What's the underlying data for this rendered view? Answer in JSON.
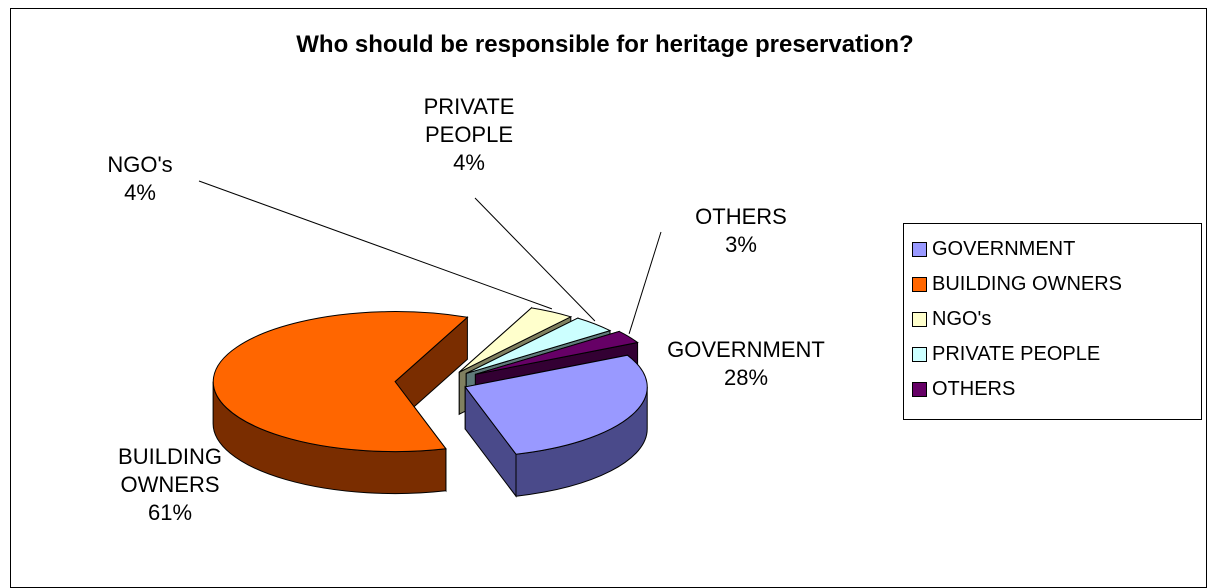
{
  "chart_data": {
    "type": "pie",
    "title": "Who should be responsible for heritage preservation?",
    "three_d": true,
    "exploded": true,
    "legend_position": "right",
    "slices": [
      {
        "name": "GOVERNMENT",
        "label": "GOVERNMENT",
        "value": 28,
        "pct_text": "28%",
        "color": "#9999ff",
        "side_color": "#4a4a8a"
      },
      {
        "name": "BUILDING OWNERS",
        "label": "BUILDING OWNERS",
        "value": 61,
        "pct_text": "61%",
        "color": "#ff6600",
        "side_color": "#7a2d00"
      },
      {
        "name": "NGO's",
        "label": "NGO's",
        "value": 4,
        "pct_text": "4%",
        "color": "#ffffcc",
        "side_color": "#808060"
      },
      {
        "name": "PRIVATE PEOPLE",
        "label": "PRIVATE PEOPLE",
        "value": 4,
        "pct_text": "4%",
        "color": "#ccffff",
        "side_color": "#5f7a7a"
      },
      {
        "name": "OTHERS",
        "label": "OTHERS",
        "value": 3,
        "pct_text": "3%",
        "color": "#660066",
        "side_color": "#330033"
      }
    ]
  }
}
